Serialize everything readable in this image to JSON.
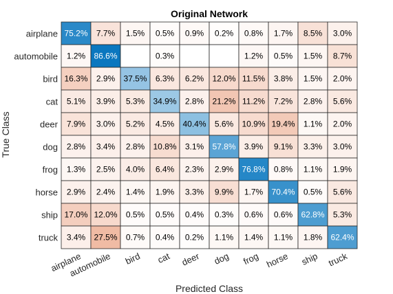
{
  "chart_data": {
    "type": "heatmap",
    "title": "Original Network",
    "xlabel": "Predicted Class",
    "ylabel": "True Class",
    "row_labels": [
      "airplane",
      "automobile",
      "bird",
      "cat",
      "deer",
      "dog",
      "frog",
      "horse",
      "ship",
      "truck"
    ],
    "col_labels": [
      "airplane",
      "automobile",
      "bird",
      "cat",
      "deer",
      "dog",
      "frog",
      "horse",
      "ship",
      "truck"
    ],
    "values": [
      [
        75.2,
        7.7,
        1.5,
        0.5,
        0.9,
        0.2,
        0.8,
        1.7,
        8.5,
        3.0
      ],
      [
        1.2,
        86.6,
        null,
        0.3,
        null,
        null,
        1.2,
        0.5,
        1.5,
        8.7
      ],
      [
        16.3,
        2.9,
        37.5,
        6.3,
        6.2,
        12.0,
        11.5,
        3.8,
        1.5,
        2.0
      ],
      [
        5.1,
        3.9,
        5.3,
        34.9,
        2.8,
        21.2,
        11.2,
        7.2,
        2.8,
        5.6
      ],
      [
        7.9,
        3.0,
        5.2,
        4.5,
        40.4,
        5.6,
        10.9,
        19.4,
        1.1,
        2.0
      ],
      [
        2.8,
        3.4,
        2.8,
        10.8,
        3.1,
        57.8,
        3.9,
        9.1,
        3.3,
        3.0
      ],
      [
        1.3,
        2.5,
        4.0,
        6.4,
        2.3,
        2.9,
        76.8,
        0.8,
        1.1,
        1.9
      ],
      [
        2.9,
        2.4,
        1.4,
        1.9,
        3.3,
        9.9,
        1.7,
        70.4,
        0.5,
        5.6
      ],
      [
        17.0,
        12.0,
        0.5,
        0.5,
        0.4,
        0.3,
        0.6,
        0.6,
        62.8,
        5.3
      ],
      [
        3.4,
        27.5,
        0.7,
        0.4,
        0.2,
        1.1,
        1.4,
        1.1,
        1.8,
        62.4
      ]
    ],
    "value_suffix": "%",
    "diagonal_color": "#0072bd",
    "offdiagonal_color": "#d95319",
    "grid": true
  }
}
